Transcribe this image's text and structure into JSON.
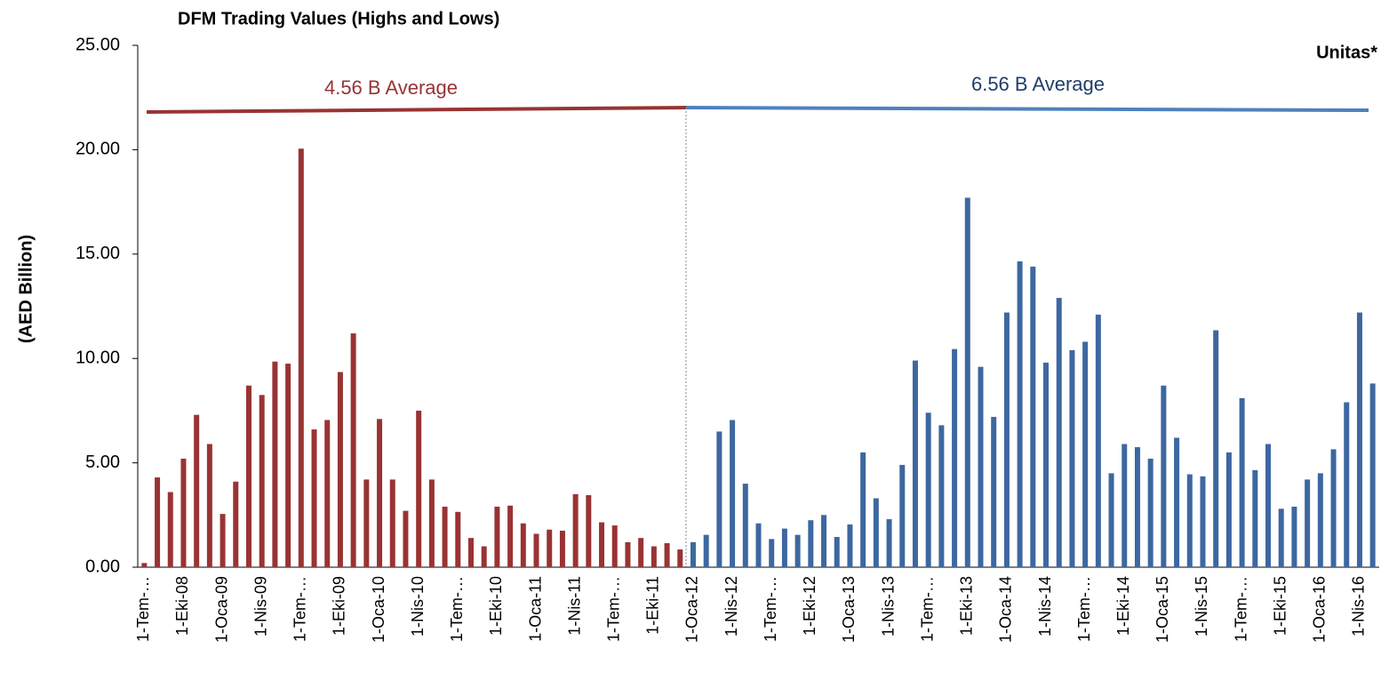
{
  "chart_data": {
    "type": "bar",
    "title": "DFM Trading Values (Highs and Lows)",
    "y_label": "(AED Billion)",
    "annotations": [
      "4.56 B Average",
      "6.56 B Average",
      "Unitas*"
    ],
    "categories": [
      "1-Tem-…",
      null,
      null,
      "1-Eki-08",
      null,
      null,
      "1-Oca-09",
      null,
      null,
      "1-Nis-09",
      null,
      null,
      "1-Tem-…",
      null,
      null,
      "1-Eki-09",
      null,
      null,
      "1-Oca-10",
      null,
      null,
      "1-Nis-10",
      null,
      null,
      "1-Tem-…",
      null,
      null,
      "1-Eki-10",
      null,
      null,
      "1-Oca-11",
      null,
      null,
      "1-Nis-11",
      null,
      null,
      "1-Tem-…",
      null,
      null,
      "1-Eki-11",
      null,
      null,
      "1-Oca-12",
      null,
      null,
      "1-Nis-12",
      null,
      null,
      "1-Tem-…",
      null,
      null,
      "1-Eki-12",
      null,
      null,
      "1-Oca-13",
      null,
      null,
      "1-Nis-13",
      null,
      null,
      "1-Tem-…",
      null,
      null,
      "1-Eki-13",
      null,
      null,
      "1-Oca-14",
      null,
      null,
      "1-Nis-14",
      null,
      null,
      "1-Tem-…",
      null,
      null,
      "1-Eki-14",
      null,
      null,
      "1-Oca-15",
      null,
      null,
      "1-Nis-15",
      null,
      null,
      "1-Tem-…",
      null,
      null,
      "1-Eki-15",
      null,
      null,
      "1-Oca-16",
      null,
      null,
      "1-Nis-16",
      null
    ],
    "series": [
      {
        "color": "#993333",
        "values": [
          0.2,
          4.3,
          3.6,
          5.2,
          7.3,
          5.9,
          2.55,
          4.1,
          8.7,
          8.25,
          9.85,
          9.75,
          20.05,
          6.6,
          7.05,
          9.35,
          11.2,
          4.2,
          7.1,
          4.2,
          2.7,
          7.5,
          4.2,
          2.9,
          2.65,
          1.4,
          1.0,
          2.9,
          2.95,
          2.1,
          1.6,
          1.8,
          1.75,
          3.5,
          3.45,
          2.15,
          2.0,
          1.2,
          1.4,
          1.0,
          1.15,
          0.85,
          null,
          null,
          null,
          null,
          null,
          null,
          null,
          null,
          null,
          null,
          null,
          null,
          null,
          null,
          null,
          null,
          null,
          null,
          null,
          null,
          null,
          null,
          null,
          null,
          null,
          null,
          null,
          null,
          null,
          null,
          null,
          null,
          null,
          null,
          null,
          null,
          null,
          null,
          null,
          null,
          null,
          null,
          null,
          null,
          null,
          null,
          null,
          null,
          null,
          null,
          null,
          null,
          null
        ]
      },
      {
        "color": "#3d67a0",
        "values": [
          null,
          null,
          null,
          null,
          null,
          null,
          null,
          null,
          null,
          null,
          null,
          null,
          null,
          null,
          null,
          null,
          null,
          null,
          null,
          null,
          null,
          null,
          null,
          null,
          null,
          null,
          null,
          null,
          null,
          null,
          null,
          null,
          null,
          null,
          null,
          null,
          null,
          null,
          null,
          null,
          null,
          null,
          1.2,
          1.55,
          6.5,
          7.05,
          4.0,
          2.1,
          1.35,
          1.85,
          1.55,
          2.25,
          2.5,
          1.45,
          2.05,
          5.5,
          3.3,
          2.3,
          4.9,
          9.9,
          7.4,
          6.8,
          10.45,
          17.7,
          9.6,
          7.2,
          12.2,
          14.65,
          14.4,
          9.8,
          12.9,
          10.4,
          10.8,
          12.1,
          4.5,
          5.9,
          5.75,
          5.2,
          8.7,
          6.2,
          4.45,
          4.35,
          11.35,
          5.5,
          8.1,
          4.65,
          5.9,
          2.8,
          2.9,
          4.2,
          4.5,
          5.65,
          7.9,
          12.2,
          8.8
        ]
      }
    ],
    "ylim": [
      0,
      25
    ],
    "yticks": [
      {
        "value": 0,
        "label": "0.00"
      },
      {
        "value": 5,
        "label": "5.00"
      },
      {
        "value": 10,
        "label": "10.00"
      },
      {
        "value": 15,
        "label": "15.00"
      },
      {
        "value": 20,
        "label": "20.00"
      },
      {
        "value": 25,
        "label": "25.00"
      }
    ]
  }
}
